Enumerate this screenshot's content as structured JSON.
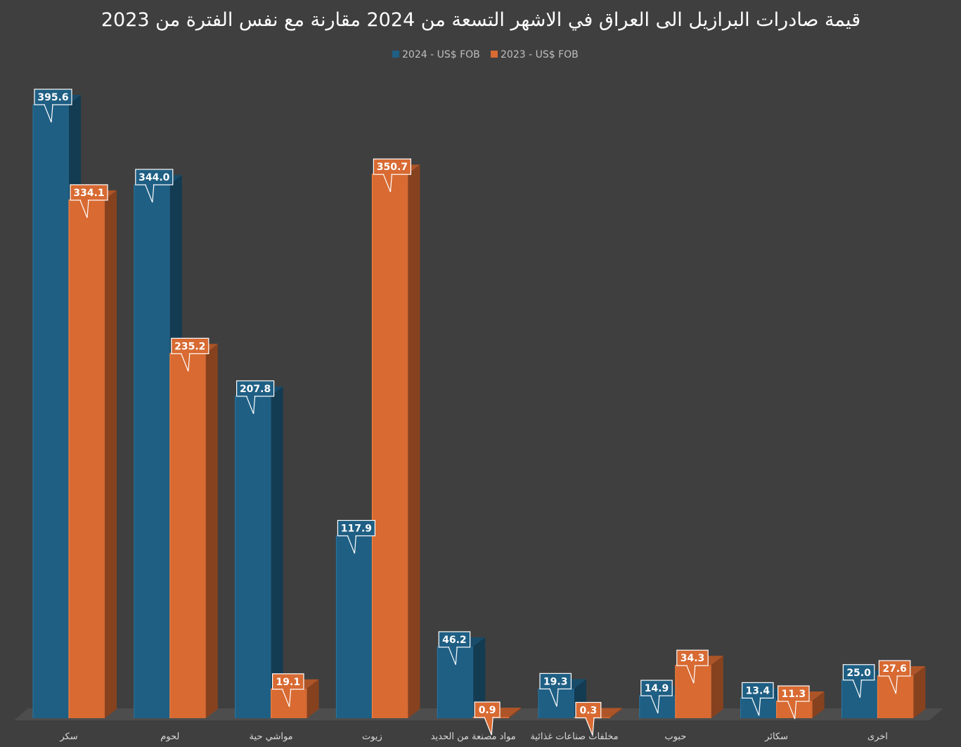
{
  "chart_data": {
    "type": "bar",
    "title": "قيمة صادرات البرازيل الى العراق في الاشهر التسعة من 2024 مقارنة مع نفس الفترة من 2023",
    "categories": [
      "سكر",
      "لحوم",
      "مواشي حية",
      "زيوت",
      "مواد مصنعة من الحديد",
      "مخلفات صناعات غذائية",
      "حبوب",
      "سكائر",
      "اخرى"
    ],
    "series": [
      {
        "name": "2024 - US$ FOB",
        "color": "#1f5f84",
        "values": [
          395.6,
          344.0,
          207.8,
          117.9,
          46.2,
          19.3,
          14.9,
          13.4,
          25.0
        ],
        "labels": [
          "395.6",
          "344.0",
          "207.8",
          "117.9",
          "46.2",
          "19.3",
          "14.9",
          "13.4",
          "25.0"
        ]
      },
      {
        "name": "2023 - US$ FOB",
        "color": "#d86a32",
        "values": [
          334.1,
          235.2,
          19.1,
          350.7,
          0.9,
          0.3,
          34.3,
          11.3,
          27.6
        ],
        "labels": [
          "334.1",
          "235.2",
          "19.1",
          "350.7",
          "0.9",
          "0.3",
          "34.3",
          "11.3",
          "27.6"
        ]
      }
    ],
    "ylim": [
      0,
      400
    ],
    "legend_position": "top",
    "grid": false,
    "style": "3d-column"
  }
}
